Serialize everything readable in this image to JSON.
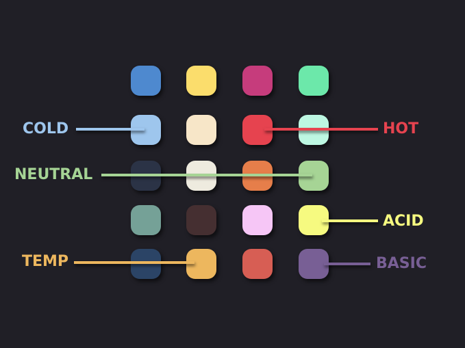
{
  "swatches": [
    [
      "#4e89cf",
      "#fbdd6c",
      "#c63c7c",
      "#6ce8aa"
    ],
    [
      "#9ec6ed",
      "#f7e6c8",
      "#e6434f",
      "#bdf7e2"
    ],
    [
      "#2b3346",
      "#eeebdf",
      "#e67e4a",
      "#a6d495"
    ],
    [
      "#75a197",
      "#452f31",
      "#f6c6f6",
      "#f6fa80"
    ],
    [
      "#2b4466",
      "#edb75e",
      "#d75e54",
      "#785f95"
    ]
  ],
  "labels": {
    "cold": {
      "text": "COLD",
      "color": "#9ec6ed"
    },
    "neutral": {
      "text": "NEUTRAL",
      "color": "#a6d495"
    },
    "temp": {
      "text": "TEMP",
      "color": "#edb75e"
    },
    "hot": {
      "text": "HOT",
      "color": "#e6434f"
    },
    "acid": {
      "text": "ACID",
      "color": "#f6fa80"
    },
    "basic": {
      "text": "BASIC",
      "color": "#785f95"
    }
  }
}
